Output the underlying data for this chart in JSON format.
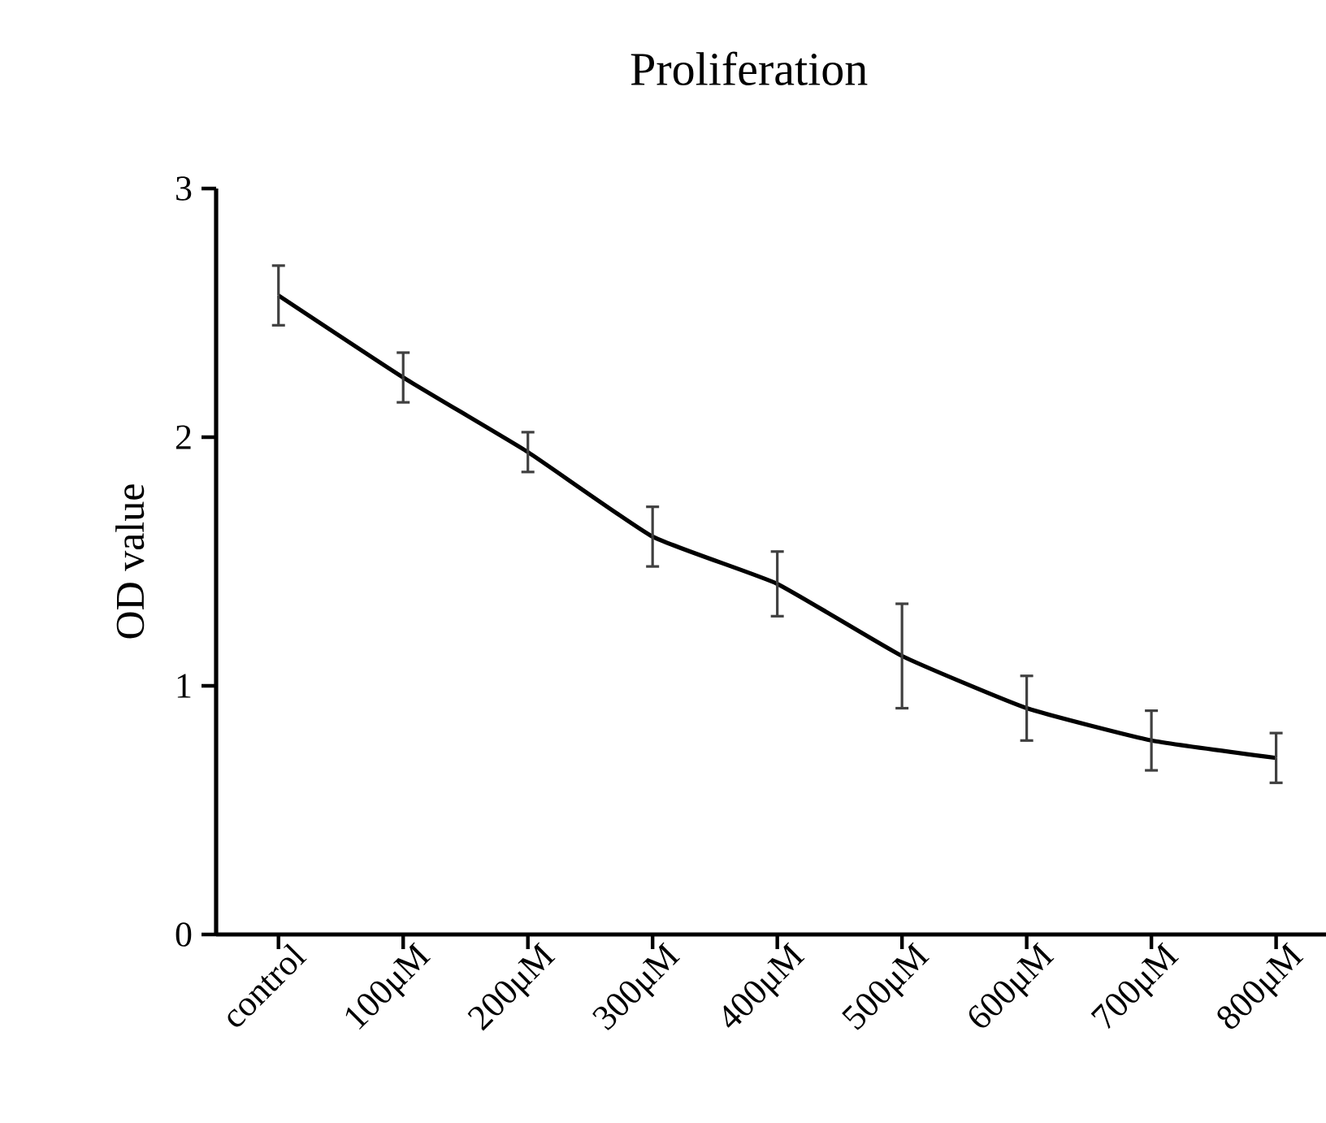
{
  "chart_data": {
    "type": "line",
    "title": "Proliferation",
    "ylabel": "OD value",
    "categories": [
      "control",
      "100μM",
      "200μM",
      "300μM",
      "400μM",
      "500μM",
      "600μM",
      "700μM",
      "800μM"
    ],
    "series": [
      {
        "color": "#000000",
        "values": [
          2.57,
          2.24,
          1.94,
          1.6,
          1.41,
          1.12,
          0.91,
          0.78,
          0.71
        ],
        "errors": [
          0.12,
          0.1,
          0.08,
          0.12,
          0.13,
          0.21,
          0.13,
          0.12,
          0.1
        ]
      }
    ],
    "ylim": [
      0,
      3
    ],
    "yticks": [
      0,
      1,
      2,
      3
    ],
    "marker": "none",
    "line_style": "solid"
  }
}
